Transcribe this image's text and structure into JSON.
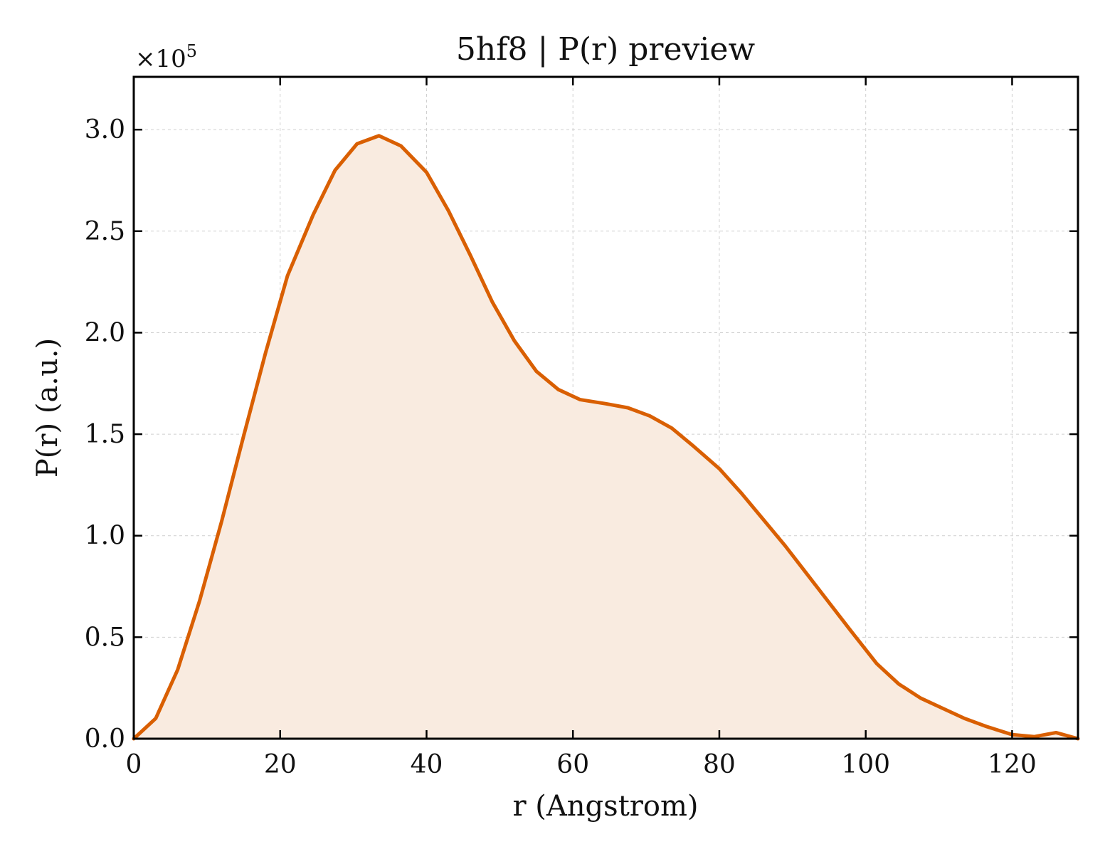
{
  "chart_data": {
    "type": "area",
    "title": "5hf8 | P(r) preview",
    "xlabel": "r (Angstrom)",
    "ylabel": "P(r) (a.u.)",
    "y_multiplier_label": "×10",
    "y_multiplier_exponent": "5",
    "y_scale": 100000,
    "xlim": [
      0,
      129
    ],
    "ylim": [
      0,
      3.26
    ],
    "x_ticks": [
      0,
      20,
      40,
      60,
      80,
      100,
      120
    ],
    "x_tick_labels": [
      "0",
      "20",
      "40",
      "60",
      "80",
      "100",
      "120"
    ],
    "y_ticks": [
      0,
      0.5,
      1.0,
      1.5,
      2.0,
      2.5,
      3.0
    ],
    "y_tick_labels": [
      "0.0",
      "0.5",
      "1.0",
      "1.5",
      "2.0",
      "2.5",
      "3.0"
    ],
    "grid": true,
    "line_color": "#d95f02",
    "fill_color": "#f9ebe0",
    "series": [
      {
        "x": [
          0,
          3.0,
          6.0,
          9.0,
          12.0,
          15.0,
          18.0,
          21.0,
          24.5,
          27.5,
          30.5,
          33.5,
          36.5,
          40.0,
          43.0,
          46.0,
          49.0,
          52.0,
          55.0,
          58.0,
          61.0,
          64.5,
          67.5,
          70.5,
          73.5,
          76.5,
          80.0,
          83.0,
          86.0,
          89.0,
          92.0,
          95.0,
          98.0,
          101.5,
          104.5,
          107.5,
          110.5,
          113.5,
          116.5,
          120.0,
          123.0,
          126.0,
          129.0
        ],
        "y": [
          0,
          0.1,
          0.34,
          0.68,
          1.07,
          1.49,
          1.9,
          2.28,
          2.58,
          2.8,
          2.93,
          2.97,
          2.92,
          2.79,
          2.6,
          2.38,
          2.15,
          1.96,
          1.81,
          1.72,
          1.67,
          1.65,
          1.63,
          1.59,
          1.53,
          1.44,
          1.33,
          1.21,
          1.08,
          0.95,
          0.81,
          0.67,
          0.53,
          0.37,
          0.27,
          0.2,
          0.15,
          0.1,
          0.06,
          0.02,
          0.01,
          0.03,
          0.0
        ]
      }
    ]
  }
}
